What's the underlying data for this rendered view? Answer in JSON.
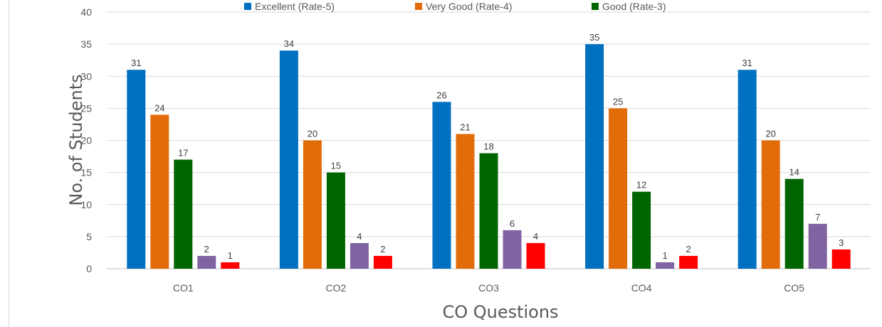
{
  "chart_data": {
    "type": "bar",
    "categories": [
      "CO1",
      "CO2",
      "CO3",
      "CO4",
      "CO5"
    ],
    "series": [
      {
        "name": "Excellent (Rate-5)",
        "color": "#0070C0",
        "values": [
          31,
          34,
          26,
          35,
          31
        ]
      },
      {
        "name": "Very Good (Rate-4)",
        "color": "#E36C0A",
        "values": [
          24,
          20,
          21,
          25,
          20
        ]
      },
      {
        "name": "Good (Rate-3)",
        "color": "#006400",
        "values": [
          17,
          15,
          18,
          12,
          14
        ]
      },
      {
        "color": "#8064A2",
        "values": [
          2,
          4,
          6,
          1,
          7
        ]
      },
      {
        "color": "#FF0000",
        "values": [
          1,
          2,
          4,
          2,
          3
        ]
      }
    ],
    "xlabel": "CO Questions",
    "ylabel": "No. of Students",
    "ylim": [
      0,
      40
    ],
    "yticks": [
      0,
      5,
      10,
      15,
      20,
      25,
      30,
      35,
      40
    ],
    "grid": true,
    "legend": "top"
  }
}
